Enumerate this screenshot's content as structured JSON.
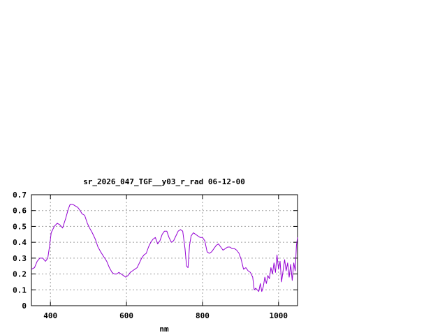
{
  "chart_data": {
    "type": "line",
    "title": "sr_2026_047_TGF__y03_r_rad 06-12-00",
    "xlabel": "nm",
    "ylabel": "",
    "xlim": [
      350,
      1050
    ],
    "ylim": [
      0,
      0.7
    ],
    "x_ticks": [
      "400",
      "600",
      "800",
      "1000"
    ],
    "x_tick_values": [
      400,
      600,
      800,
      1000
    ],
    "y_ticks": [
      "0",
      "0.1",
      "0.2",
      "0.3",
      "0.4",
      "0.5",
      "0.6",
      "0.7"
    ],
    "y_tick_values": [
      0,
      0.1,
      0.2,
      0.3,
      0.4,
      0.5,
      0.6,
      0.7
    ],
    "grid": true,
    "colors": {
      "line": "#9400d3",
      "grid": "#a0a0a0",
      "axes": "#000000"
    },
    "series": [
      {
        "x": [
          350,
          358,
          365,
          372,
          380,
          387,
          393,
          398,
          402,
          410,
          418,
          425,
          432,
          440,
          447,
          452,
          458,
          465,
          472,
          478,
          483,
          490,
          497,
          503,
          510,
          518,
          525,
          532,
          540,
          548,
          555,
          562,
          568,
          574,
          580,
          586,
          592,
          598,
          604,
          610,
          616,
          622,
          628,
          634,
          640,
          646,
          652,
          658,
          664,
          670,
          676,
          682,
          688,
          694,
          700,
          706,
          712,
          718,
          724,
          730,
          736,
          742,
          748,
          754,
          758,
          762,
          766,
          770,
          776,
          782,
          788,
          794,
          800,
          806,
          812,
          818,
          824,
          830,
          836,
          842,
          848,
          854,
          860,
          866,
          872,
          878,
          884,
          890,
          896,
          902,
          908,
          914,
          920,
          926,
          932,
          936,
          940,
          944,
          948,
          952,
          956,
          960,
          964,
          968,
          972,
          976,
          980,
          984,
          988,
          992,
          996,
          1000,
          1004,
          1008,
          1012,
          1016,
          1020,
          1024,
          1028,
          1032,
          1036,
          1040,
          1044,
          1047,
          1050
        ],
        "y": [
          0.23,
          0.24,
          0.28,
          0.3,
          0.3,
          0.28,
          0.3,
          0.38,
          0.46,
          0.5,
          0.52,
          0.51,
          0.49,
          0.55,
          0.61,
          0.64,
          0.64,
          0.63,
          0.62,
          0.6,
          0.58,
          0.57,
          0.52,
          0.49,
          0.46,
          0.42,
          0.37,
          0.34,
          0.31,
          0.28,
          0.24,
          0.21,
          0.2,
          0.2,
          0.21,
          0.2,
          0.19,
          0.18,
          0.19,
          0.21,
          0.22,
          0.23,
          0.24,
          0.27,
          0.3,
          0.32,
          0.33,
          0.37,
          0.4,
          0.42,
          0.43,
          0.39,
          0.41,
          0.45,
          0.47,
          0.47,
          0.43,
          0.4,
          0.41,
          0.44,
          0.47,
          0.48,
          0.47,
          0.36,
          0.25,
          0.24,
          0.38,
          0.44,
          0.46,
          0.45,
          0.44,
          0.43,
          0.43,
          0.41,
          0.34,
          0.33,
          0.34,
          0.36,
          0.38,
          0.39,
          0.37,
          0.35,
          0.36,
          0.37,
          0.37,
          0.36,
          0.36,
          0.35,
          0.33,
          0.29,
          0.23,
          0.24,
          0.22,
          0.21,
          0.18,
          0.1,
          0.11,
          0.1,
          0.09,
          0.14,
          0.09,
          0.12,
          0.18,
          0.14,
          0.19,
          0.17,
          0.24,
          0.2,
          0.27,
          0.21,
          0.32,
          0.23,
          0.28,
          0.15,
          0.22,
          0.29,
          0.22,
          0.27,
          0.18,
          0.26,
          0.16,
          0.27,
          0.22,
          0.38,
          0.43
        ]
      }
    ]
  }
}
